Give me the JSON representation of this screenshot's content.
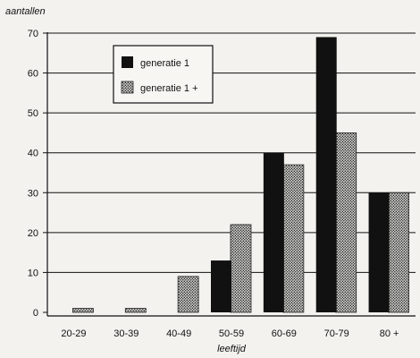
{
  "chart_data": {
    "type": "bar",
    "ylabel": "aantallen",
    "xlabel": "leeftijd",
    "categories": [
      "20-29",
      "30-39",
      "40-49",
      "50-59",
      "60-69",
      "70-79",
      "80 +"
    ],
    "series": [
      {
        "name": "generatie 1",
        "values": [
          0,
          0,
          0,
          13,
          40,
          69,
          30
        ],
        "color": "#111111",
        "pattern": "solid"
      },
      {
        "name": "generatie 1 +",
        "values": [
          1,
          1,
          9,
          22,
          37,
          45,
          30
        ],
        "color": "#2a2a2a",
        "pattern": "stipple"
      }
    ],
    "ylim": [
      0,
      70
    ],
    "yticks": [
      0,
      10,
      20,
      30,
      40,
      50,
      60,
      70
    ],
    "grid": true,
    "legend_position": "top-left"
  }
}
